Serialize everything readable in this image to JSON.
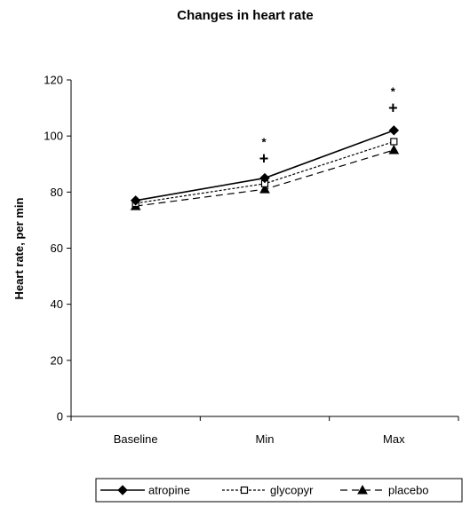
{
  "chart_data": {
    "type": "line",
    "title": "Changes in heart rate",
    "xlabel": "",
    "ylabel": "Heart rate, per min",
    "categories": [
      "Baseline",
      "Min",
      "Max"
    ],
    "ylim": [
      0,
      120
    ],
    "yticks": [
      0,
      20,
      40,
      60,
      80,
      100,
      120
    ],
    "grid": false,
    "legend_position": "bottom",
    "series": [
      {
        "name": "atropine",
        "values": [
          77,
          85,
          102
        ],
        "marker": "diamond-filled",
        "line": "solid"
      },
      {
        "name": "glycopyr",
        "values": [
          76,
          83,
          98
        ],
        "marker": "square-open",
        "line": "dotted"
      },
      {
        "name": "placebo",
        "values": [
          75,
          81,
          95
        ],
        "marker": "triangle-filled",
        "line": "dashed"
      }
    ],
    "annotations": [
      {
        "category": "Min",
        "symbols": [
          "*",
          "+"
        ],
        "at_values": [
          99,
          92
        ]
      },
      {
        "category": "Max",
        "symbols": [
          "*",
          "+"
        ],
        "at_values": [
          117,
          110
        ]
      }
    ]
  }
}
